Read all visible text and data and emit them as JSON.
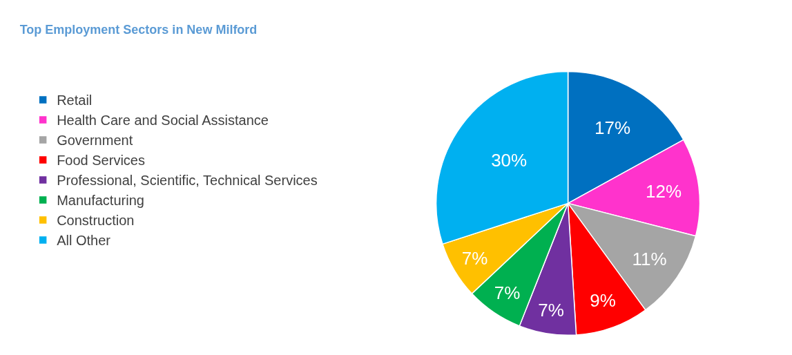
{
  "chart_data": {
    "type": "pie",
    "title": "Top Employment Sectors in New Milford",
    "categories": [
      "Retail",
      "Health Care and Social Assistance",
      "Government",
      "Food Services",
      "Professional, Scientific, Technical Services",
      "Manufacturing",
      "Construction",
      "All Other"
    ],
    "values": [
      17,
      12,
      11,
      9,
      7,
      7,
      7,
      30
    ],
    "value_labels": [
      "17%",
      "12%",
      "11%",
      "9%",
      "7%",
      "7%",
      "7%",
      "30%"
    ],
    "colors": [
      "#0070c0",
      "#ff33cc",
      "#a5a5a5",
      "#ff0000",
      "#7030a0",
      "#00b050",
      "#ffc000",
      "#00b0f0"
    ],
    "legend": "left"
  }
}
